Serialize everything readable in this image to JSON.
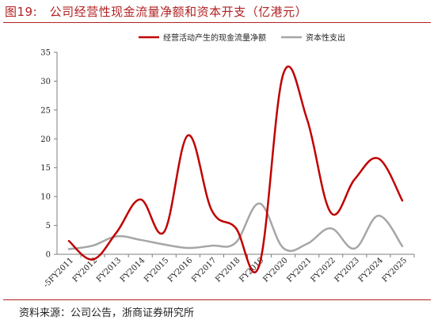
{
  "title": "图19:　公司经营性现金流量净额和资本开支（亿港元）",
  "source": "资料来源：公司公告，浙商证券研究所",
  "colors": {
    "series1": "#c00000",
    "series2": "#a6a6a6",
    "accent": "#b22222"
  },
  "chart_data": {
    "type": "line",
    "categories": [
      "FY2011",
      "FY2012",
      "FY2013",
      "FY2014",
      "FY2015",
      "FY2016",
      "FY2017",
      "FY2018",
      "FY2019",
      "FY2020",
      "FY2021",
      "FY2022",
      "FY2023",
      "FY2024",
      "FY2025"
    ],
    "series": [
      {
        "name": "经营活动产生的现金流量净额",
        "color": "#c00000",
        "values": [
          2.3,
          -0.9,
          3.8,
          9.5,
          3.9,
          20.6,
          7.6,
          4.6,
          -1.8,
          31.2,
          23.4,
          7.2,
          13.0,
          16.6,
          9.3
        ]
      },
      {
        "name": "资本性支出",
        "color": "#a6a6a6",
        "values": [
          0.9,
          1.5,
          3.1,
          2.5,
          1.7,
          1.1,
          1.5,
          2.0,
          8.8,
          1.1,
          1.8,
          4.5,
          1.0,
          6.7,
          1.4
        ]
      }
    ],
    "yticks": [
      0,
      5,
      10,
      15,
      20,
      25,
      30,
      35
    ],
    "ytick_labels": [
      "0",
      "5",
      "10",
      "15",
      "20",
      "25",
      "30",
      "35"
    ],
    "first_xtick_label": "-5FY2011",
    "ylim": [
      0,
      35
    ],
    "legend_position": "top",
    "grid": false
  }
}
